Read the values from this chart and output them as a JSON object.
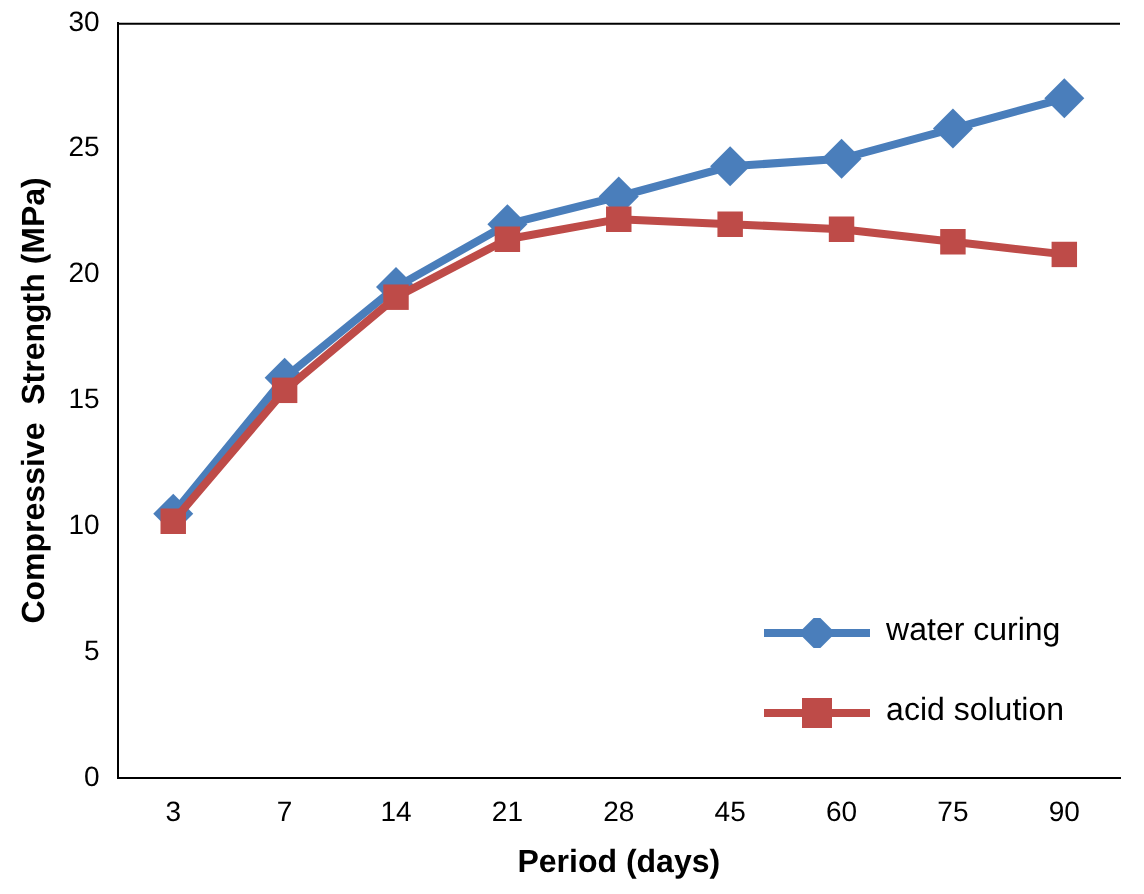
{
  "chart_data": {
    "type": "line",
    "xlabel": "Period (days)",
    "ylabel": "Compressive  Strength (MPa)",
    "categories": [
      "3",
      "7",
      "14",
      "21",
      "28",
      "45",
      "60",
      "75",
      "90"
    ],
    "series": [
      {
        "name": "water curing",
        "color": "#4a7ebb",
        "marker": "diamond",
        "values": [
          10.5,
          15.9,
          19.5,
          22.0,
          23.1,
          24.3,
          24.6,
          25.8,
          27.0
        ]
      },
      {
        "name": "acid solution",
        "color": "#be4b48",
        "marker": "square",
        "values": [
          10.2,
          15.4,
          19.1,
          21.4,
          22.2,
          22.0,
          21.8,
          21.3,
          20.8
        ]
      }
    ],
    "ylim": [
      0,
      30
    ],
    "yticks": [
      0,
      5,
      10,
      15,
      20,
      25,
      30
    ],
    "grid": false,
    "legend": "bottom right",
    "line_style": "solid"
  }
}
